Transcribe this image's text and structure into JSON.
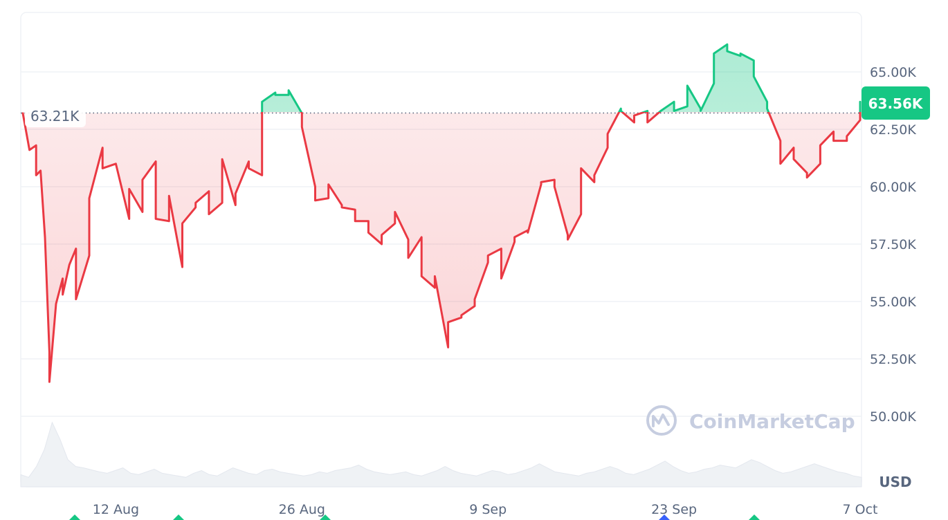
{
  "chart_data": {
    "type": "area",
    "baseline": 63210,
    "baseline_label": "63.21K",
    "current_label": "63.56K",
    "unit": "USD",
    "watermark": "CoinMarketCap",
    "y_ticks": [
      {
        "value": 65000,
        "label": "65.00K"
      },
      {
        "value": 62500,
        "label": "62.50K"
      },
      {
        "value": 60000,
        "label": "60.00K"
      },
      {
        "value": 57500,
        "label": "57.50K"
      },
      {
        "value": 55000,
        "label": "55.00K"
      },
      {
        "value": 52500,
        "label": "52.50K"
      },
      {
        "value": 50000,
        "label": "50.00K"
      }
    ],
    "ylim": [
      47500,
      67500
    ],
    "x_range": [
      "2024-08-05",
      "2024-10-07"
    ],
    "x_ticks": [
      {
        "date": "2024-08-12",
        "label": "12 Aug"
      },
      {
        "date": "2024-08-26",
        "label": "26 Aug"
      },
      {
        "date": "2024-09-09",
        "label": "9 Sep"
      },
      {
        "date": "2024-09-23",
        "label": "23 Sep"
      },
      {
        "date": "2024-10-07",
        "label": "7 Oct"
      }
    ],
    "series": [
      {
        "values": [
          [
            "2024-08-05",
            63200
          ],
          [
            "2024-08-05",
            61600
          ],
          [
            "2024-08-05",
            61800
          ],
          [
            "2024-08-06",
            60500
          ],
          [
            "2024-08-06",
            60700
          ],
          [
            "2024-08-06",
            57800
          ],
          [
            "2024-08-06",
            52800
          ],
          [
            "2024-08-07",
            51500
          ],
          [
            "2024-08-07",
            54900
          ],
          [
            "2024-08-07",
            56000
          ],
          [
            "2024-08-08",
            55300
          ],
          [
            "2024-08-08",
            56600
          ],
          [
            "2024-08-08",
            57300
          ],
          [
            "2024-08-09",
            55100
          ],
          [
            "2024-08-09",
            57000
          ],
          [
            "2024-08-10",
            59500
          ],
          [
            "2024-08-10",
            61700
          ],
          [
            "2024-08-11",
            60800
          ],
          [
            "2024-08-11",
            61000
          ],
          [
            "2024-08-12",
            61000
          ],
          [
            "2024-08-12",
            58600
          ],
          [
            "2024-08-13",
            59900
          ],
          [
            "2024-08-13",
            58900
          ],
          [
            "2024-08-14",
            60300
          ],
          [
            "2024-08-14",
            61100
          ],
          [
            "2024-08-15",
            58600
          ],
          [
            "2024-08-15",
            58500
          ],
          [
            "2024-08-16",
            59600
          ],
          [
            "2024-08-16",
            56500
          ],
          [
            "2024-08-17",
            58400
          ],
          [
            "2024-08-17",
            59100
          ],
          [
            "2024-08-18",
            59300
          ],
          [
            "2024-08-18",
            59800
          ],
          [
            "2024-08-19",
            58800
          ],
          [
            "2024-08-19",
            59300
          ],
          [
            "2024-08-20",
            61200
          ],
          [
            "2024-08-20",
            59200
          ],
          [
            "2024-08-21",
            59700
          ],
          [
            "2024-08-21",
            61100
          ],
          [
            "2024-08-22",
            60800
          ],
          [
            "2024-08-22",
            60500
          ],
          [
            "2024-08-23",
            63700
          ],
          [
            "2024-08-23",
            64100
          ],
          [
            "2024-08-24",
            64000
          ],
          [
            "2024-08-24",
            64000
          ],
          [
            "2024-08-25",
            64200
          ],
          [
            "2024-08-25",
            63200
          ],
          [
            "2024-08-26",
            62600
          ],
          [
            "2024-08-26",
            60000
          ],
          [
            "2024-08-27",
            59400
          ],
          [
            "2024-08-27",
            59500
          ],
          [
            "2024-08-28",
            60100
          ],
          [
            "2024-08-28",
            59200
          ],
          [
            "2024-08-29",
            59100
          ],
          [
            "2024-08-29",
            59000
          ],
          [
            "2024-08-30",
            58500
          ],
          [
            "2024-08-30",
            58500
          ],
          [
            "2024-08-31",
            58000
          ],
          [
            "2024-08-31",
            57500
          ],
          [
            "2024-09-01",
            57900
          ],
          [
            "2024-09-01",
            58400
          ],
          [
            "2024-09-02",
            58900
          ],
          [
            "2024-09-02",
            57700
          ],
          [
            "2024-09-03",
            56900
          ],
          [
            "2024-09-03",
            57800
          ],
          [
            "2024-09-04",
            56100
          ],
          [
            "2024-09-04",
            55600
          ],
          [
            "2024-09-05",
            56100
          ],
          [
            "2024-09-05",
            53000
          ],
          [
            "2024-09-06",
            54100
          ],
          [
            "2024-09-06",
            54300
          ],
          [
            "2024-09-07",
            54400
          ],
          [
            "2024-09-07",
            54800
          ],
          [
            "2024-09-08",
            55100
          ],
          [
            "2024-09-08",
            56700
          ],
          [
            "2024-09-09",
            57000
          ],
          [
            "2024-09-09",
            57300
          ],
          [
            "2024-09-10",
            56000
          ],
          [
            "2024-09-10",
            57600
          ],
          [
            "2024-09-11",
            57800
          ],
          [
            "2024-09-11",
            58100
          ],
          [
            "2024-09-12",
            58000
          ],
          [
            "2024-09-12",
            60100
          ],
          [
            "2024-09-13",
            60200
          ],
          [
            "2024-09-13",
            60300
          ],
          [
            "2024-09-14",
            60000
          ],
          [
            "2024-09-14",
            57900
          ],
          [
            "2024-09-15",
            57700
          ],
          [
            "2024-09-15",
            58800
          ],
          [
            "2024-09-16",
            60800
          ],
          [
            "2024-09-16",
            60200
          ],
          [
            "2024-09-17",
            60500
          ],
          [
            "2024-09-17",
            61700
          ],
          [
            "2024-09-18",
            62300
          ],
          [
            "2024-09-18",
            63400
          ],
          [
            "2024-09-19",
            63300
          ],
          [
            "2024-09-19",
            62800
          ],
          [
            "2024-09-20",
            63100
          ],
          [
            "2024-09-20",
            63300
          ],
          [
            "2024-09-21",
            62800
          ],
          [
            "2024-09-21",
            63300
          ],
          [
            "2024-09-22",
            63300
          ],
          [
            "2024-09-22",
            63700
          ],
          [
            "2024-09-23",
            63300
          ],
          [
            "2024-09-23",
            63500
          ],
          [
            "2024-09-24",
            64400
          ],
          [
            "2024-09-24",
            63400
          ],
          [
            "2024-09-25",
            63300
          ],
          [
            "2024-09-25",
            64500
          ],
          [
            "2024-09-26",
            65800
          ],
          [
            "2024-09-26",
            66200
          ],
          [
            "2024-09-27",
            65900
          ],
          [
            "2024-09-27",
            65700
          ],
          [
            "2024-09-28",
            65800
          ],
          [
            "2024-09-28",
            65500
          ],
          [
            "2024-09-29",
            64800
          ],
          [
            "2024-09-29",
            63700
          ],
          [
            "2024-09-30",
            63400
          ],
          [
            "2024-09-30",
            62000
          ],
          [
            "2024-10-01",
            61000
          ],
          [
            "2024-10-01",
            61700
          ],
          [
            "2024-10-02",
            61200
          ],
          [
            "2024-10-02",
            60600
          ],
          [
            "2024-10-03",
            60400
          ],
          [
            "2024-10-03",
            61000
          ],
          [
            "2024-10-04",
            61800
          ],
          [
            "2024-10-04",
            62400
          ],
          [
            "2024-10-05",
            62000
          ],
          [
            "2024-10-05",
            62000
          ],
          [
            "2024-10-06",
            62200
          ],
          [
            "2024-10-06",
            62900
          ],
          [
            "2024-10-07",
            63700
          ],
          [
            "2024-10-07",
            63560
          ]
        ]
      }
    ],
    "volume_series_level": [
      0.18,
      0.14,
      0.3,
      0.55,
      0.95,
      0.7,
      0.4,
      0.3,
      0.28,
      0.25,
      0.22,
      0.2,
      0.24,
      0.28,
      0.2,
      0.18,
      0.22,
      0.26,
      0.2,
      0.18,
      0.16,
      0.14,
      0.2,
      0.24,
      0.18,
      0.16,
      0.22,
      0.28,
      0.24,
      0.2,
      0.18,
      0.24,
      0.26,
      0.22,
      0.2,
      0.18,
      0.16,
      0.18,
      0.22,
      0.2,
      0.24,
      0.26,
      0.28,
      0.32,
      0.26,
      0.22,
      0.2,
      0.18,
      0.2,
      0.22,
      0.18,
      0.16,
      0.2,
      0.24,
      0.3,
      0.24,
      0.2,
      0.18,
      0.16,
      0.2,
      0.24,
      0.22,
      0.18,
      0.2,
      0.24,
      0.28,
      0.34,
      0.28,
      0.22,
      0.2,
      0.18,
      0.16,
      0.2,
      0.22,
      0.26,
      0.3,
      0.26,
      0.2,
      0.18,
      0.22,
      0.26,
      0.32,
      0.38,
      0.3,
      0.24,
      0.2,
      0.22,
      0.26,
      0.28,
      0.32,
      0.3,
      0.28,
      0.34,
      0.4,
      0.36,
      0.3,
      0.24,
      0.2,
      0.22,
      0.26,
      0.3,
      0.34,
      0.3,
      0.26,
      0.22,
      0.2,
      0.16,
      0.14
    ],
    "colors": {
      "up": "#16c784",
      "down": "#ea3943",
      "grid": "#eff2f5",
      "axis_text": "#58667e",
      "volume": "#eff2f5",
      "watermark": "#c6cde0"
    }
  }
}
